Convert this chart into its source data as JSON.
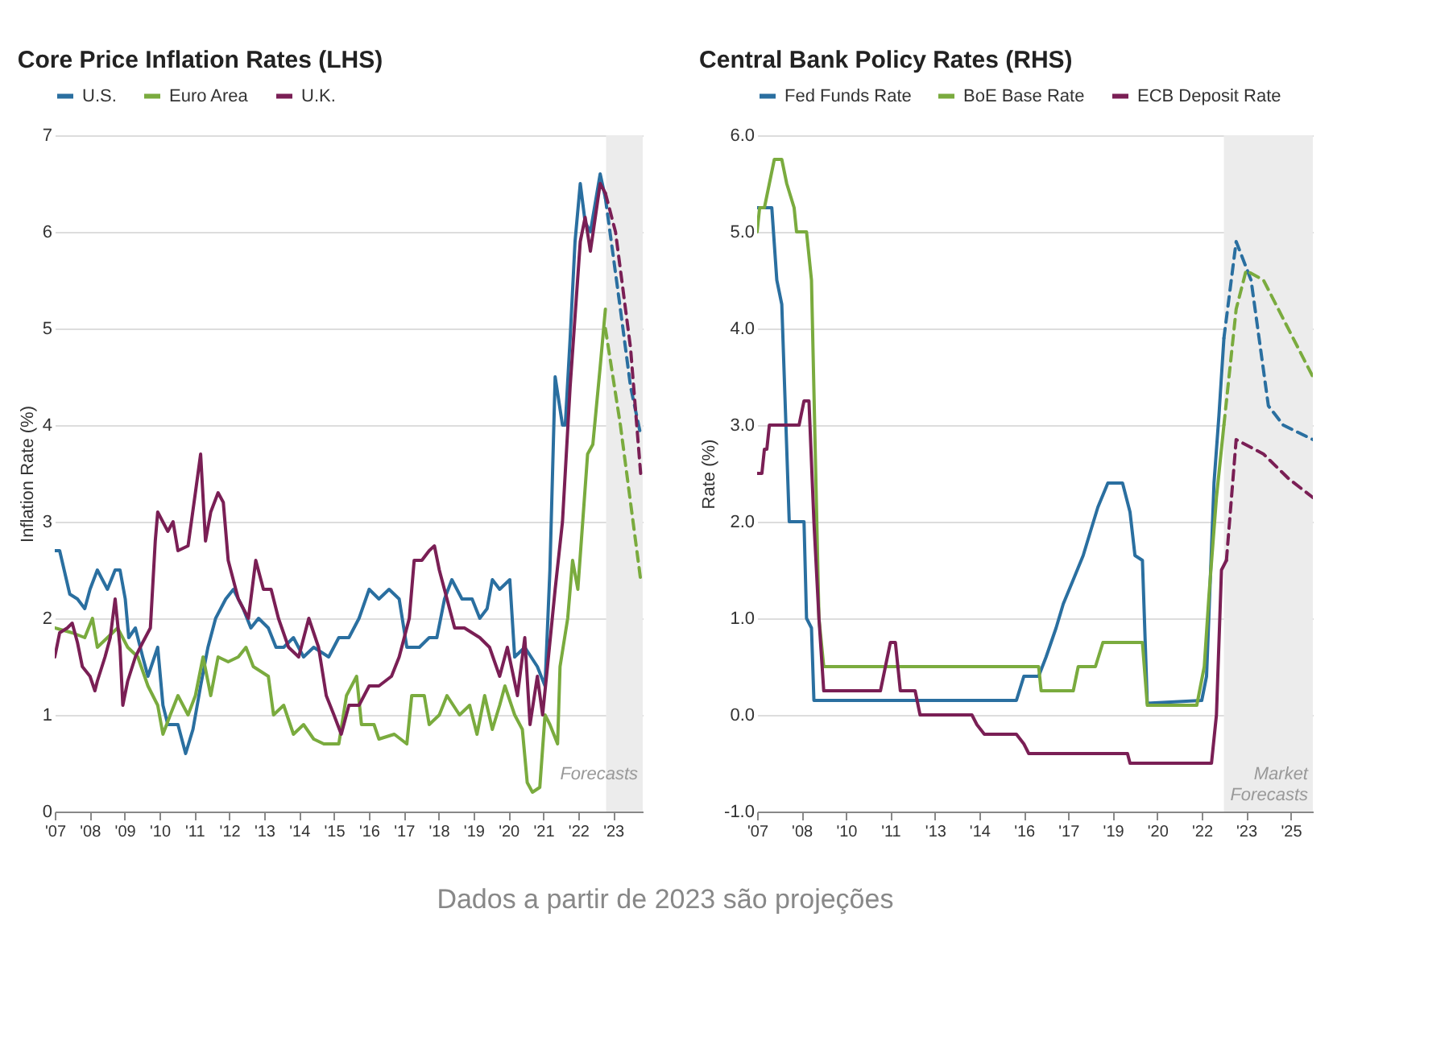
{
  "chart_data": [
    {
      "type": "line",
      "title": "Core Price Inflation Rates (LHS)",
      "ylabel": "Inflation Rate (%)",
      "xlim": [
        2007,
        2023.85
      ],
      "ylim": [
        0,
        7
      ],
      "yticks": [
        0,
        1,
        2,
        3,
        4,
        5,
        6,
        7
      ],
      "xticks": [
        {
          "value": 2007,
          "label": "'07"
        },
        {
          "value": 2008,
          "label": "'08"
        },
        {
          "value": 2009,
          "label": "'09"
        },
        {
          "value": 2010,
          "label": "'10"
        },
        {
          "value": 2011,
          "label": "'11"
        },
        {
          "value": 2012,
          "label": "'12"
        },
        {
          "value": 2013,
          "label": "'13"
        },
        {
          "value": 2014,
          "label": "'14"
        },
        {
          "value": 2015,
          "label": "'15"
        },
        {
          "value": 2016,
          "label": "'16"
        },
        {
          "value": 2017,
          "label": "'17"
        },
        {
          "value": 2018,
          "label": "'18"
        },
        {
          "value": 2019,
          "label": "'19"
        },
        {
          "value": 2020,
          "label": "'20"
        },
        {
          "value": 2021,
          "label": "'21"
        },
        {
          "value": 2022,
          "label": "'22"
        },
        {
          "value": 2023,
          "label": "'23"
        }
      ],
      "grid": "y",
      "legend": "top",
      "bands": [
        {
          "axis": "x",
          "from": 2022.8,
          "to": 2023.85,
          "label": "Forecasts",
          "color": "#ececec"
        }
      ],
      "series": [
        {
          "name": "U.S.",
          "color": "#2a6fa0",
          "x": [
            2007,
            2007.14,
            2007.43,
            2007.65,
            2007.86,
            2008.01,
            2008.22,
            2008.51,
            2008.73,
            2008.87,
            2009.02,
            2009.12,
            2009.31,
            2009.52,
            2009.67,
            2009.95,
            2010.1,
            2010.24,
            2010.53,
            2010.75,
            2010.96,
            2011.18,
            2011.39,
            2011.61,
            2011.9,
            2012.12,
            2012.4,
            2012.62,
            2012.84,
            2013.12,
            2013.34,
            2013.56,
            2013.84,
            2014.13,
            2014.42,
            2014.85,
            2015.14,
            2015.43,
            2015.72,
            2016.01,
            2016.29,
            2016.58,
            2016.87,
            2017.09,
            2017.45,
            2017.73,
            2017.95,
            2018.17,
            2018.38,
            2018.67,
            2018.96,
            2019.18,
            2019.39,
            2019.54,
            2019.75,
            2020.04,
            2020.18,
            2020.47,
            2020.83,
            2021.05,
            2021.19,
            2021.34,
            2021.55,
            2021.63,
            2021.77,
            2021.91,
            2022.06,
            2022.2,
            2022.35,
            2022.63,
            2022.78
          ],
          "values": [
            2.7,
            2.7,
            2.25,
            2.2,
            2.1,
            2.3,
            2.5,
            2.3,
            2.5,
            2.5,
            2.2,
            1.8,
            1.9,
            1.6,
            1.4,
            1.7,
            1.1,
            0.9,
            0.9,
            0.6,
            0.85,
            1.3,
            1.7,
            2.0,
            2.2,
            2.3,
            2.1,
            1.9,
            2.0,
            1.9,
            1.7,
            1.7,
            1.8,
            1.6,
            1.7,
            1.6,
            1.8,
            1.8,
            2.0,
            2.3,
            2.2,
            2.3,
            2.2,
            1.7,
            1.7,
            1.8,
            1.8,
            2.2,
            2.4,
            2.2,
            2.2,
            2.0,
            2.1,
            2.4,
            2.3,
            2.4,
            1.6,
            1.7,
            1.5,
            1.3,
            2.5,
            4.5,
            4.0,
            4.0,
            4.9,
            5.9,
            6.5,
            6.1,
            6.0,
            6.6,
            6.35
          ]
        },
        {
          "name": "Euro Area",
          "color": "#7aab3e",
          "x": [
            2007,
            2007.5,
            2007.86,
            2008.08,
            2008.22,
            2008.51,
            2008.8,
            2009.09,
            2009.38,
            2009.67,
            2009.95,
            2010.1,
            2010.31,
            2010.53,
            2010.82,
            2011.03,
            2011.25,
            2011.47,
            2011.68,
            2011.97,
            2012.26,
            2012.48,
            2012.69,
            2013.12,
            2013.27,
            2013.56,
            2013.84,
            2014.13,
            2014.42,
            2014.71,
            2015.14,
            2015.36,
            2015.65,
            2015.79,
            2016.15,
            2016.29,
            2016.73,
            2017.09,
            2017.23,
            2017.59,
            2017.73,
            2018.02,
            2018.24,
            2018.6,
            2018.89,
            2019.1,
            2019.32,
            2019.54,
            2019.75,
            2019.9,
            2020.18,
            2020.4,
            2020.54,
            2020.69,
            2020.9,
            2021.05,
            2021.19,
            2021.41,
            2021.48,
            2021.7,
            2021.84,
            2021.99,
            2022.13,
            2022.27,
            2022.42,
            2022.63,
            2022.78
          ],
          "values": [
            1.9,
            1.85,
            1.8,
            2.0,
            1.7,
            1.8,
            1.9,
            1.7,
            1.6,
            1.3,
            1.1,
            0.8,
            1.0,
            1.2,
            1.0,
            1.2,
            1.6,
            1.2,
            1.6,
            1.55,
            1.6,
            1.7,
            1.5,
            1.4,
            1.0,
            1.1,
            0.8,
            0.9,
            0.75,
            0.7,
            0.7,
            1.2,
            1.4,
            0.9,
            0.9,
            0.75,
            0.8,
            0.7,
            1.2,
            1.2,
            0.9,
            1.0,
            1.2,
            1.0,
            1.1,
            0.8,
            1.2,
            0.85,
            1.1,
            1.3,
            1.0,
            0.85,
            0.3,
            0.2,
            0.25,
            1.0,
            0.9,
            0.7,
            1.5,
            2.0,
            2.6,
            2.3,
            3.0,
            3.7,
            3.8,
            4.6,
            5.2
          ]
        },
        {
          "name": "U.K.",
          "color": "#7a1f55",
          "x": [
            2007,
            2007.14,
            2007.36,
            2007.5,
            2007.65,
            2007.79,
            2008.01,
            2008.15,
            2008.22,
            2008.44,
            2008.59,
            2008.73,
            2008.87,
            2008.95,
            2009.09,
            2009.31,
            2009.52,
            2009.74,
            2009.88,
            2009.95,
            2010.24,
            2010.39,
            2010.53,
            2010.82,
            2011.03,
            2011.18,
            2011.32,
            2011.47,
            2011.68,
            2011.83,
            2011.97,
            2012.26,
            2012.55,
            2012.76,
            2012.98,
            2013.2,
            2013.41,
            2013.7,
            2013.99,
            2014.28,
            2014.56,
            2014.78,
            2015.0,
            2015.21,
            2015.43,
            2015.72,
            2016.01,
            2016.29,
            2016.65,
            2016.87,
            2017.16,
            2017.3,
            2017.52,
            2017.73,
            2017.88,
            2018.02,
            2018.24,
            2018.46,
            2018.74,
            2019.18,
            2019.46,
            2019.75,
            2019.97,
            2020.26,
            2020.47,
            2020.62,
            2020.83,
            2020.98,
            2021.12,
            2021.34,
            2021.55,
            2021.77,
            2022.06,
            2022.2,
            2022.35,
            2022.63,
            2022.78
          ],
          "values": [
            1.6,
            1.85,
            1.9,
            1.95,
            1.75,
            1.5,
            1.4,
            1.25,
            1.35,
            1.6,
            1.8,
            2.2,
            1.7,
            1.1,
            1.35,
            1.6,
            1.75,
            1.9,
            2.8,
            3.1,
            2.9,
            3.0,
            2.7,
            2.75,
            3.3,
            3.7,
            2.8,
            3.1,
            3.3,
            3.2,
            2.6,
            2.2,
            2.0,
            2.6,
            2.3,
            2.3,
            2.0,
            1.7,
            1.6,
            2.0,
            1.7,
            1.2,
            1.0,
            0.8,
            1.1,
            1.1,
            1.3,
            1.3,
            1.4,
            1.6,
            2.0,
            2.6,
            2.6,
            2.7,
            2.75,
            2.5,
            2.2,
            1.9,
            1.9,
            1.8,
            1.7,
            1.4,
            1.7,
            1.2,
            1.8,
            0.9,
            1.4,
            1.0,
            1.5,
            2.3,
            3.0,
            4.4,
            5.9,
            6.15,
            5.8,
            6.5,
            6.4
          ]
        },
        {
          "color": "#2a6fa0",
          "line_style": "dashed",
          "x": [
            2022.78,
            2023.21,
            2023.5,
            2023.79
          ],
          "values": [
            6.35,
            5.2,
            4.4,
            3.9
          ]
        },
        {
          "color": "#7aab3e",
          "line_style": "dashed",
          "x": [
            2022.78,
            2023.21,
            2023.5,
            2023.79
          ],
          "values": [
            5.0,
            4.0,
            3.2,
            2.4
          ]
        },
        {
          "color": "#7a1f55",
          "line_style": "dashed",
          "x": [
            2022.78,
            2023.07,
            2023.5,
            2023.79
          ],
          "values": [
            6.4,
            6.0,
            4.8,
            3.5
          ]
        }
      ],
      "annotations": [
        "Dados a partir de 2023 são projeções"
      ]
    },
    {
      "type": "line",
      "title": "Central Bank Policy Rates (RHS)",
      "ylabel": "Rate (%)",
      "xlim": [
        "2007-01",
        "2025-10"
      ],
      "ylim": [
        -1,
        6
      ],
      "yticks": [
        {
          "value": -1,
          "label": "-1.0"
        },
        {
          "value": 0,
          "label": "0.0"
        },
        {
          "value": 1,
          "label": "1.0"
        },
        {
          "value": 2,
          "label": "2.0"
        },
        {
          "value": 3,
          "label": "3.0"
        },
        {
          "value": 4,
          "label": "4.0"
        },
        {
          "value": 5,
          "label": "5.0"
        },
        {
          "value": 6,
          "label": "6.0"
        }
      ],
      "xticks": [
        {
          "value": "2007-01",
          "label": "'07"
        },
        {
          "value": "2008-07",
          "label": "'08"
        },
        {
          "value": "2010-01",
          "label": "'10"
        },
        {
          "value": "2011-07",
          "label": "'11"
        },
        {
          "value": "2013-01",
          "label": "'13"
        },
        {
          "value": "2014-07",
          "label": "'14"
        },
        {
          "value": "2016-01",
          "label": "'16"
        },
        {
          "value": "2017-07",
          "label": "'17"
        },
        {
          "value": "2019-01",
          "label": "'19"
        },
        {
          "value": "2020-07",
          "label": "'20"
        },
        {
          "value": "2022-01",
          "label": "'22"
        },
        {
          "value": "2023-07",
          "label": "'23"
        },
        {
          "value": "2025-01",
          "label": "'25"
        }
      ],
      "grid": "y",
      "legend": "top",
      "bands": [
        {
          "axis": "x",
          "from": "2022-10",
          "to": "2025-10",
          "label": "Market Forecasts",
          "color": "#ececec"
        }
      ],
      "series": [
        {
          "name": "Fed Funds Rate",
          "color": "#2a6fa0",
          "x": [
            "2007-01",
            "2007-07",
            "2007-09",
            "2007-11",
            "2008-02",
            "2008-08",
            "2008-09",
            "2008-11",
            "2008-12",
            "2015-10",
            "2016-01",
            "2016-07",
            "2016-10",
            "2017-02",
            "2017-05",
            "2017-09",
            "2018-01",
            "2018-04",
            "2018-07",
            "2018-11",
            "2019-05",
            "2019-08",
            "2019-10",
            "2020-01",
            "2020-03",
            "2022-01",
            "2022-03",
            "2022-06",
            "2022-08",
            "2022-10"
          ],
          "values": [
            5.25,
            5.25,
            4.5,
            4.25,
            2.0,
            2.0,
            1.0,
            0.9,
            0.15,
            0.15,
            0.4,
            0.4,
            0.6,
            0.9,
            1.15,
            1.4,
            1.65,
            1.9,
            2.15,
            2.4,
            2.4,
            2.1,
            1.65,
            1.6,
            0.12,
            0.15,
            0.4,
            2.4,
            3.1,
            3.9
          ]
        },
        {
          "name": "BoE Base Rate",
          "color": "#7aab3e",
          "x": [
            "2007-01",
            "2007-02",
            "2007-04",
            "2007-06",
            "2007-08",
            "2007-11",
            "2008-01",
            "2008-04",
            "2008-05",
            "2008-09",
            "2008-11",
            "2009-02",
            "2009-04",
            "2016-07",
            "2016-08",
            "2017-09",
            "2017-11",
            "2018-06",
            "2018-09",
            "2020-01",
            "2020-03",
            "2021-11",
            "2022-02",
            "2022-04",
            "2022-07",
            "2022-10"
          ],
          "values": [
            5.0,
            5.25,
            5.25,
            5.5,
            5.75,
            5.75,
            5.5,
            5.25,
            5.0,
            5.0,
            4.5,
            1.0,
            0.5,
            0.5,
            0.25,
            0.25,
            0.5,
            0.5,
            0.75,
            0.75,
            0.1,
            0.1,
            0.5,
            1.25,
            2.25,
            3.0
          ]
        },
        {
          "name": "ECB Deposit Rate",
          "color": "#7a1f55",
          "x": [
            "2007-01",
            "2007-03",
            "2007-04",
            "2007-05",
            "2007-06",
            "2008-06",
            "2008-08",
            "2008-10",
            "2008-12",
            "2009-02",
            "2009-04",
            "2011-03",
            "2011-05",
            "2011-07",
            "2011-09",
            "2011-11",
            "2012-05",
            "2012-07",
            "2014-04",
            "2014-06",
            "2014-09",
            "2015-10",
            "2016-01",
            "2016-03",
            "2019-07",
            "2019-08",
            "2022-05",
            "2022-07",
            "2022-09",
            "2022-11"
          ],
          "values": [
            2.5,
            2.5,
            2.75,
            2.75,
            3.0,
            3.0,
            3.25,
            3.25,
            2.0,
            1.0,
            0.25,
            0.25,
            0.5,
            0.75,
            0.75,
            0.25,
            0.25,
            0.0,
            0.0,
            -0.1,
            -0.2,
            -0.2,
            -0.3,
            -0.4,
            -0.4,
            -0.5,
            -0.5,
            0.0,
            1.5,
            1.6
          ]
        },
        {
          "color": "#2a6fa0",
          "line_style": "dashed",
          "x": [
            "2022-10",
            "2023-03",
            "2023-09",
            "2024-04",
            "2024-10",
            "2025-10"
          ],
          "values": [
            3.9,
            4.9,
            4.5,
            3.2,
            3.0,
            2.85
          ]
        },
        {
          "color": "#7aab3e",
          "line_style": "dashed",
          "x": [
            "2022-10",
            "2023-03",
            "2023-07",
            "2024-02",
            "2025-10"
          ],
          "values": [
            3.0,
            4.2,
            4.6,
            4.5,
            3.5
          ]
        },
        {
          "color": "#7a1f55",
          "line_style": "dashed",
          "x": [
            "2022-11",
            "2023-03",
            "2024-02",
            "2024-12",
            "2025-10"
          ],
          "values": [
            1.6,
            2.85,
            2.7,
            2.45,
            2.25
          ]
        }
      ]
    }
  ]
}
